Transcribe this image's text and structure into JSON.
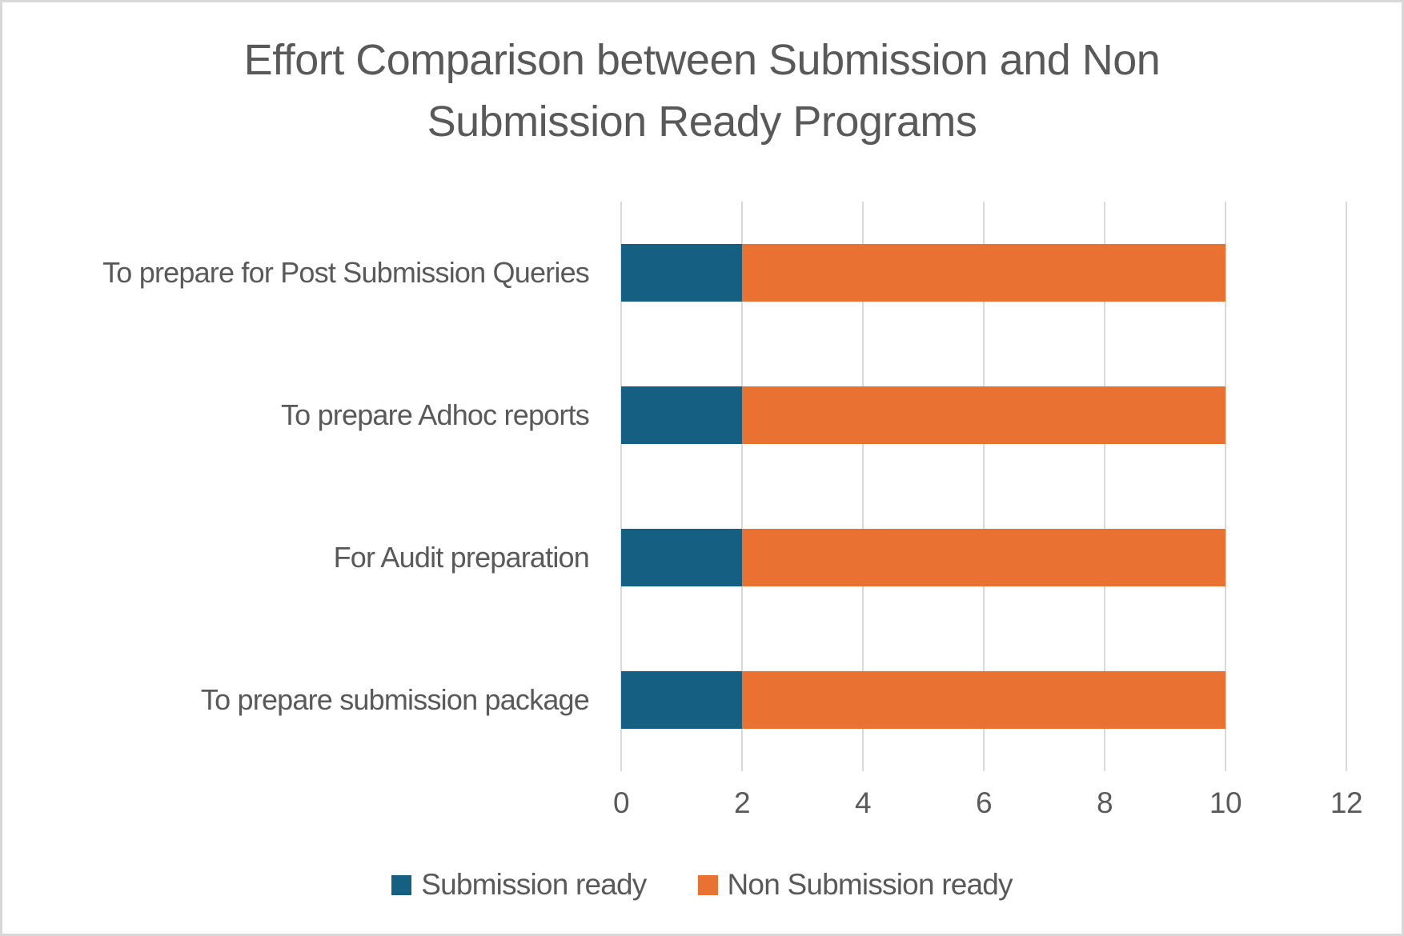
{
  "chart_data": {
    "type": "bar",
    "orientation": "horizontal",
    "stacked": true,
    "title": "Effort Comparison between Submission and Non Submission Ready Programs",
    "title_lines": [
      "Effort Comparison between Submission and Non",
      "Submission Ready Programs"
    ],
    "categories": [
      "To prepare for Post Submission Queries",
      "To prepare Adhoc reports",
      "For Audit preparation",
      "To prepare submission package"
    ],
    "series": [
      {
        "name": "Submission ready",
        "color": "#156082",
        "values": [
          2,
          2,
          2,
          2
        ]
      },
      {
        "name": "Non Submission ready",
        "color": "#E97132",
        "values": [
          8,
          8,
          8,
          8
        ]
      }
    ],
    "stacked_totals": [
      10,
      10,
      10,
      10
    ],
    "xlim": [
      0,
      12
    ],
    "x_ticks": [
      0,
      2,
      4,
      6,
      8,
      10,
      12
    ],
    "grid": "vertical",
    "legend_position": "bottom",
    "xlabel": "",
    "ylabel": "",
    "colors": {
      "text": "#595959",
      "gridline": "#D9D9D9",
      "background": "#FFFFFF",
      "frame_border": "#D8D8D8"
    }
  }
}
